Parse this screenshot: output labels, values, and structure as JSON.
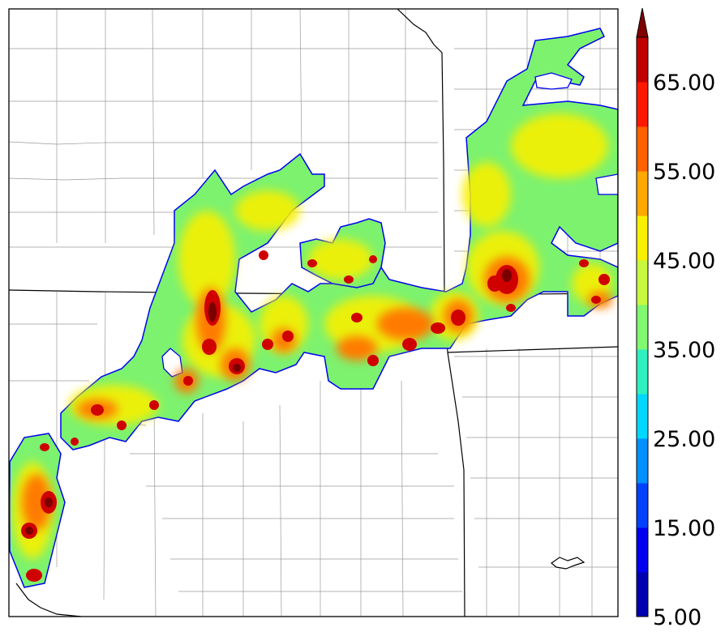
{
  "colorbar": {
    "extend": "max",
    "labels": [
      "5.00",
      "15.00",
      "25.00",
      "35.00",
      "45.00",
      "55.00",
      "65.00"
    ],
    "levels": [
      5,
      10,
      15,
      20,
      25,
      30,
      35,
      40,
      45,
      50,
      55,
      60,
      65,
      70
    ],
    "colors": [
      "#0000b0",
      "#0000f0",
      "#0040ff",
      "#0090ff",
      "#00d8ff",
      "#30f0c0",
      "#80f870",
      "#c8f840",
      "#f8f000",
      "#ffa800",
      "#ff6000",
      "#ff1800",
      "#c00000",
      "#800000"
    ],
    "max_color": "#800000"
  },
  "map": {
    "background": "#ffffff",
    "border_color": "#000000",
    "county_line_color": "#999999"
  }
}
